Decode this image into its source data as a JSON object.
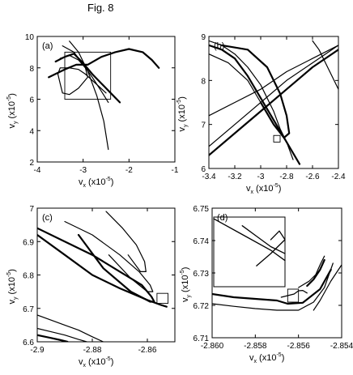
{
  "figure": {
    "title": "Fig. 8"
  },
  "chart_data": [
    {
      "panel_label": "(a)",
      "type": "line",
      "xlabel": "v_x (x10^-5)",
      "ylabel": "v_y (x10^-5)",
      "xlim": [
        -4,
        -1
      ],
      "ylim": [
        2,
        10
      ],
      "xticks": [
        -4,
        -3,
        -2,
        -1
      ],
      "xtick_labels": [
        "-4",
        "-3",
        "-2",
        "-1"
      ],
      "yticks": [
        2,
        4,
        6,
        8,
        10
      ],
      "ytick_labels": [
        "2",
        "4",
        "6",
        "8",
        "10"
      ],
      "zoom_box": {
        "x": [
          -3.4,
          -2.4
        ],
        "y": [
          6,
          9
        ]
      },
      "series": [
        {
          "x": [
            -3.75,
            -3.4,
            -3.15,
            -2.9,
            -2.6,
            -2.3,
            -2.0,
            -1.7,
            -1.5,
            -1.35
          ],
          "y": [
            7.4,
            7.9,
            8.2,
            8.2,
            8.7,
            9.0,
            9.2,
            9.0,
            8.5,
            8.0
          ]
        },
        {
          "x": [
            -3.3,
            -3.1,
            -2.9,
            -2.7,
            -2.55,
            -2.45
          ],
          "y": [
            9.7,
            9.0,
            7.8,
            6.2,
            4.6,
            2.8
          ]
        },
        {
          "x": [
            -3.5,
            -3.3,
            -3.1,
            -2.95,
            -2.9,
            -3.1,
            -3.3,
            -3.45,
            -3.5,
            -3.55,
            -3.5,
            -3.3,
            -3.1,
            -2.95,
            -2.8,
            -2.65,
            -2.5
          ],
          "y": [
            8.6,
            8.8,
            8.5,
            8.0,
            7.4,
            6.7,
            6.3,
            6.4,
            7.0,
            7.6,
            8.0,
            8.0,
            7.9,
            7.6,
            7.2,
            6.8,
            6.4
          ]
        },
        {
          "x": [
            -3.6,
            -3.4,
            -3.2,
            -3.0,
            -2.8,
            -2.6,
            -2.4,
            -2.2
          ],
          "y": [
            8.4,
            8.7,
            8.9,
            8.3,
            7.6,
            7.0,
            6.4,
            5.8
          ]
        },
        {
          "x": [
            -3.45,
            -3.2,
            -3.0,
            -2.8,
            -2.6,
            -2.45
          ],
          "y": [
            9.4,
            9.0,
            8.2,
            7.4,
            6.5,
            5.8
          ]
        }
      ]
    },
    {
      "panel_label": "(b)",
      "type": "line",
      "xlabel": "v_x (x10^-5)",
      "ylabel": "v_y (x10^-5)",
      "xlim": [
        -3.4,
        -2.4
      ],
      "ylim": [
        6,
        9
      ],
      "xticks": [
        -3.4,
        -3.2,
        -3.0,
        -2.8,
        -2.6,
        -2.4
      ],
      "xtick_labels": [
        "-3.4",
        "-3.2",
        "-3",
        "-2.8",
        "-2.6",
        "-2.4"
      ],
      "yticks": [
        6,
        7,
        8,
        9
      ],
      "ytick_labels": [
        "6",
        "7",
        "8",
        "9"
      ],
      "zoom_box": {
        "x": [
          -2.9,
          -2.85
        ],
        "y": [
          6.6,
          6.75
        ]
      },
      "series": [
        {
          "x": [
            -3.4,
            -3.3,
            -3.2,
            -3.1,
            -3.0,
            -2.9,
            -2.8,
            -2.7
          ],
          "y": [
            8.8,
            8.7,
            8.5,
            8.1,
            7.6,
            7.1,
            6.6,
            6.1
          ]
        },
        {
          "x": [
            -3.4,
            -3.25,
            -3.1,
            -3.0,
            -2.9,
            -2.8,
            -2.75
          ],
          "y": [
            8.6,
            8.4,
            8.0,
            7.5,
            7.0,
            6.6,
            6.2
          ]
        },
        {
          "x": [
            -3.4,
            -3.3,
            -3.2,
            -3.1,
            -3.0,
            -2.9,
            -2.85,
            -2.8
          ],
          "y": [
            8.9,
            8.8,
            8.6,
            8.3,
            7.9,
            7.3,
            6.9,
            6.6
          ]
        },
        {
          "x": [
            -3.4,
            -3.2,
            -3.0,
            -2.8,
            -2.6,
            -2.4
          ],
          "y": [
            6.3,
            6.8,
            7.3,
            7.8,
            8.3,
            8.7
          ]
        },
        {
          "x": [
            -3.4,
            -3.2,
            -3.0,
            -2.8,
            -2.6,
            -2.4
          ],
          "y": [
            6.5,
            7.0,
            7.5,
            8.0,
            8.4,
            8.8
          ]
        },
        {
          "x": [
            -3.4,
            -3.2,
            -3.0,
            -2.8,
            -2.6,
            -2.4
          ],
          "y": [
            7.2,
            7.5,
            7.8,
            8.2,
            8.5,
            8.8
          ]
        },
        {
          "x": [
            -3.3,
            -3.1,
            -2.95,
            -2.85,
            -2.8,
            -2.78,
            -2.82,
            -2.9,
            -3.0
          ],
          "y": [
            8.8,
            8.7,
            8.3,
            7.7,
            7.2,
            6.8,
            6.7,
            7.0,
            7.5
          ]
        },
        {
          "x": [
            -2.6,
            -2.55,
            -2.5,
            -2.45,
            -2.4
          ],
          "y": [
            8.9,
            8.7,
            8.4,
            8.1,
            7.8
          ]
        }
      ]
    },
    {
      "panel_label": "(c)",
      "type": "line",
      "xlabel": "v_x (x10^-5)",
      "ylabel": "v_y (x10^-5)",
      "xlim": [
        -2.9,
        -2.85
      ],
      "ylim": [
        6.6,
        7.0
      ],
      "xticks": [
        -2.9,
        -2.88,
        -2.86
      ],
      "xtick_labels": [
        "-2.9",
        "-2.88",
        "-2.86"
      ],
      "yticks": [
        6.6,
        6.7,
        6.8,
        6.9,
        7.0
      ],
      "ytick_labels": [
        "6.6",
        "6.7",
        "6.8",
        "6.9",
        "7"
      ],
      "zoom_box": {
        "x": [
          -2.8565,
          -2.8525
        ],
        "y": [
          6.715,
          6.745
        ]
      },
      "series": [
        {
          "x": [
            -2.9,
            -2.89,
            -2.88,
            -2.87,
            -2.862,
            -2.8585,
            -2.8575,
            -2.859,
            -2.866,
            -2.876,
            -2.885
          ],
          "y": [
            6.94,
            6.9,
            6.86,
            6.81,
            6.77,
            6.735,
            6.72,
            6.72,
            6.75,
            6.82,
            6.92
          ]
        },
        {
          "x": [
            -2.89,
            -2.88,
            -2.87,
            -2.863,
            -2.859,
            -2.858,
            -2.86,
            -2.866,
            -2.874
          ],
          "y": [
            6.96,
            6.92,
            6.86,
            6.81,
            6.77,
            6.75,
            6.75,
            6.79,
            6.86
          ]
        },
        {
          "x": [
            -2.875,
            -2.869,
            -2.864,
            -2.861,
            -2.8605,
            -2.8625,
            -2.867
          ],
          "y": [
            6.99,
            6.94,
            6.89,
            6.84,
            6.81,
            6.81,
            6.86
          ]
        },
        {
          "x": [
            -2.9,
            -2.89,
            -2.88,
            -2.87,
            -2.86,
            -2.855,
            -2.853
          ],
          "y": [
            6.92,
            6.86,
            6.8,
            6.76,
            6.725,
            6.71,
            6.705
          ]
        },
        {
          "x": [
            -2.9,
            -2.895,
            -2.89,
            -2.885,
            -2.88,
            -2.876
          ],
          "y": [
            6.68,
            6.665,
            6.65,
            6.635,
            6.615,
            6.6
          ]
        },
        {
          "x": [
            -2.9,
            -2.895,
            -2.89,
            -2.885,
            -2.882
          ],
          "y": [
            6.64,
            6.63,
            6.62,
            6.607,
            6.6
          ]
        },
        {
          "x": [
            -2.9,
            -2.896,
            -2.892,
            -2.889
          ],
          "y": [
            6.62,
            6.613,
            6.606,
            6.6
          ]
        }
      ]
    },
    {
      "panel_label": "(d)",
      "type": "line",
      "xlabel": "v_x (x10^-5)",
      "ylabel": "v_y (x10^-5)",
      "xlim": [
        -2.86,
        -2.854
      ],
      "ylim": [
        6.71,
        6.75
      ],
      "xticks": [
        -2.86,
        -2.858,
        -2.856,
        -2.854
      ],
      "xtick_labels": [
        "-2.860",
        "-2.858",
        "-2.856",
        "-2.854"
      ],
      "yticks": [
        6.71,
        6.72,
        6.73,
        6.74,
        6.75
      ],
      "ytick_labels": [
        "6.71",
        "6.72",
        "6.73",
        "6.74",
        "6.75"
      ],
      "zoom_box": {
        "x": [
          -2.8565,
          -2.856
        ],
        "y": [
          6.721,
          6.725
        ]
      },
      "inset": {
        "xlim": [
          -2.8565,
          -2.856
        ],
        "ylim": [
          6.721,
          6.725
        ],
        "series": [
          {
            "x": [
              -2.8565,
              -2.8563,
              -2.8561,
              -2.856
            ],
            "y": [
              6.7249,
              6.724,
              6.7231,
              6.7225
            ]
          },
          {
            "x": [
              -2.8563,
              -2.8562,
              -2.8561,
              -2.856
            ],
            "y": [
              6.7245,
              6.7239,
              6.7233,
              6.7229
            ]
          },
          {
            "x": [
              -2.8562,
              -2.8561,
              -2.856,
              -2.85604,
              -2.8561
            ],
            "y": [
              6.7222,
              6.7229,
              6.7237,
              6.7242,
              6.7237
            ]
          }
        ]
      },
      "series": [
        {
          "x": [
            -2.86,
            -2.859,
            -2.858,
            -2.857,
            -2.8565,
            -2.8558,
            -2.855,
            -2.8545
          ],
          "y": [
            6.7235,
            6.7225,
            6.722,
            6.7215,
            6.7205,
            6.7208,
            6.725,
            6.731
          ]
        },
        {
          "x": [
            -2.86,
            -2.859,
            -2.858,
            -2.857,
            -2.856,
            -2.8553,
            -2.8548,
            -2.8544
          ],
          "y": [
            6.7205,
            6.7197,
            6.719,
            6.7185,
            6.7185,
            6.721,
            6.7255,
            6.733
          ]
        },
        {
          "x": [
            -2.856,
            -2.8555,
            -2.8552,
            -2.855,
            -2.8548
          ],
          "y": [
            6.7255,
            6.7275,
            6.7295,
            6.7325,
            6.7352
          ]
        },
        {
          "x": [
            -2.8556,
            -2.8553,
            -2.855,
            -2.8548
          ],
          "y": [
            6.726,
            6.728,
            6.731,
            6.734
          ]
        },
        {
          "x": [
            -2.8553,
            -2.855,
            -2.8545,
            -2.854
          ],
          "y": [
            6.7185,
            6.7215,
            6.7275,
            6.7325
          ]
        },
        {
          "x": [
            -2.8568,
            -2.8562,
            -2.856,
            -2.8558,
            -2.8556
          ],
          "y": [
            6.7225,
            6.7235,
            6.7245,
            6.7246,
            6.7238
          ]
        }
      ]
    }
  ]
}
